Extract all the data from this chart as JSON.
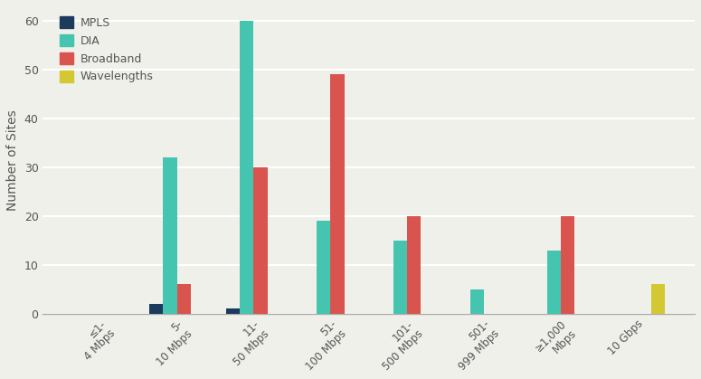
{
  "categories": [
    "≤1-\n4 Mbps",
    "5-\n10 Mbps",
    "11-\n50 Mbps",
    "51-\n100 Mbps",
    "101-\n500 Mbps",
    "501-\n999 Mbps",
    "≥1,000\nMbps",
    "10 Gbps"
  ],
  "series": {
    "MPLS": [
      0,
      2,
      1,
      0,
      0,
      0,
      0,
      0
    ],
    "DIA": [
      0,
      32,
      60,
      19,
      15,
      5,
      13,
      0
    ],
    "Broadband": [
      0,
      6,
      30,
      49,
      20,
      0,
      20,
      0
    ],
    "Wavelengths": [
      0,
      0,
      0,
      0,
      0,
      0,
      0,
      6
    ]
  },
  "colors": {
    "MPLS": "#1b3a5c",
    "DIA": "#45c4b0",
    "Broadband": "#d9534f",
    "Wavelengths": "#d4c832"
  },
  "ylabel": "Number of Sites",
  "ylim": [
    0,
    63
  ],
  "yticks": [
    0,
    10,
    20,
    30,
    40,
    50,
    60
  ],
  "background_color": "#f0f0eb",
  "grid_color": "#ffffff",
  "bar_width": 0.18,
  "legend_order": [
    "MPLS",
    "DIA",
    "Broadband",
    "Wavelengths"
  ]
}
